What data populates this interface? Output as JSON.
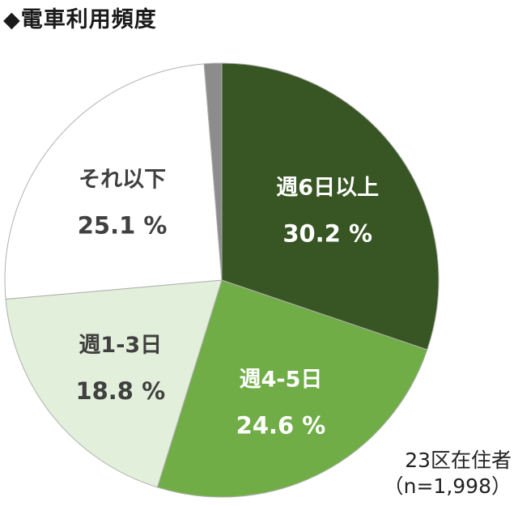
{
  "title": "◆電車利用頻度",
  "note": {
    "population": "23区在住者",
    "sample": "（n=1,998）"
  },
  "colors": {
    "outline": "#b0b0b0",
    "label_dark": "#404040",
    "label_light": "#ffffff"
  },
  "chart_data": {
    "type": "pie",
    "start_angle_deg": 0,
    "direction": "clockwise",
    "slices": [
      {
        "label": "週6日以上",
        "value": 30.2,
        "value_text": "30.2 %",
        "color": "#375623"
      },
      {
        "label": "週4-5日",
        "value": 24.6,
        "value_text": "24.6 %",
        "color": "#70ad47"
      },
      {
        "label": "週1-3日",
        "value": 18.8,
        "value_text": "18.8 %",
        "color": "#e2efda"
      },
      {
        "label": "それ以下",
        "value": 25.1,
        "value_text": "25.1 %",
        "color": "#ffffff"
      },
      {
        "label": "",
        "value": 1.3,
        "value_text": "",
        "color": "#8c8c8c"
      }
    ]
  }
}
